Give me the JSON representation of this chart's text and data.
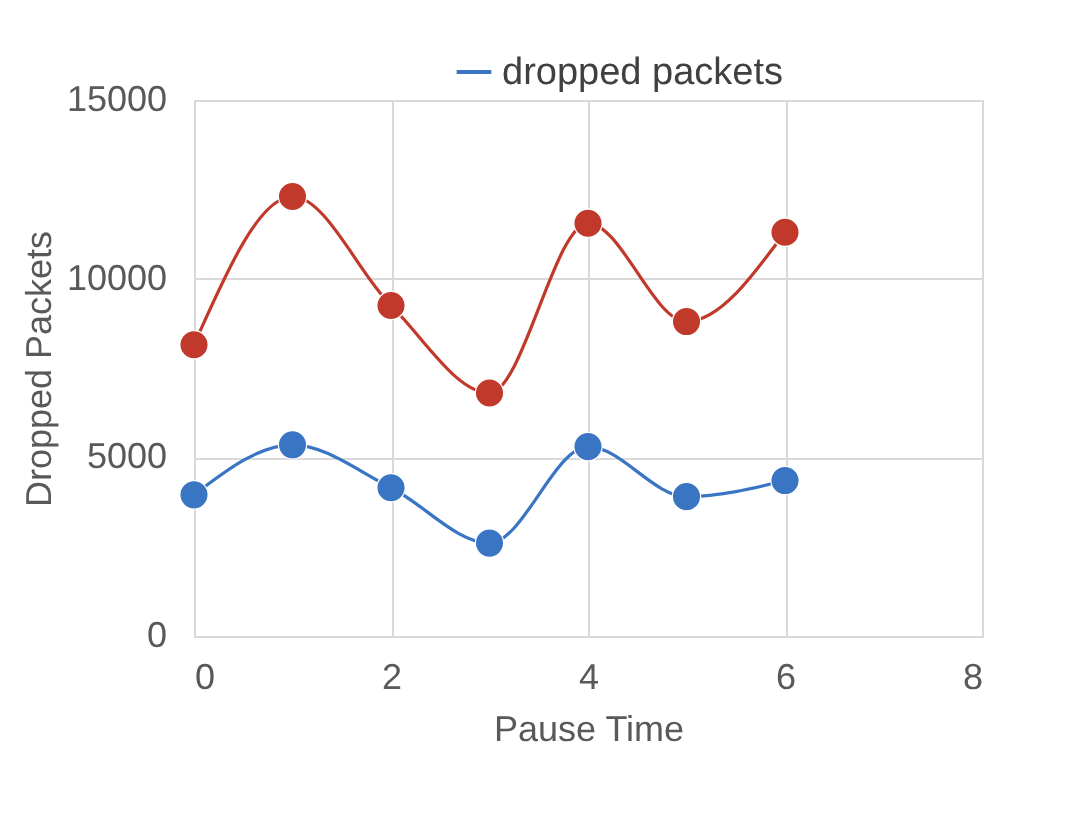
{
  "chart_data": {
    "type": "line",
    "xlabel": "Pause Time",
    "ylabel": "Dropped Packets",
    "x": [
      0,
      1,
      2,
      3,
      4,
      5,
      6
    ],
    "series": [
      {
        "name": "dropped packets",
        "color": "#3a75c4",
        "values": [
          3950,
          5350,
          4150,
          2600,
          5300,
          3900,
          4350
        ]
      },
      {
        "color": "#c0392b",
        "values": [
          8150,
          12300,
          9250,
          6800,
          11550,
          8800,
          11300
        ]
      }
    ],
    "xlim": [
      0,
      8
    ],
    "xticks": [
      0,
      2,
      4,
      6,
      8
    ],
    "ylim": [
      0,
      15000
    ],
    "yticks": [
      0,
      5000,
      10000,
      15000
    ],
    "grid": true,
    "legend": "top right",
    "marker": "circle",
    "line_style": "solid"
  }
}
